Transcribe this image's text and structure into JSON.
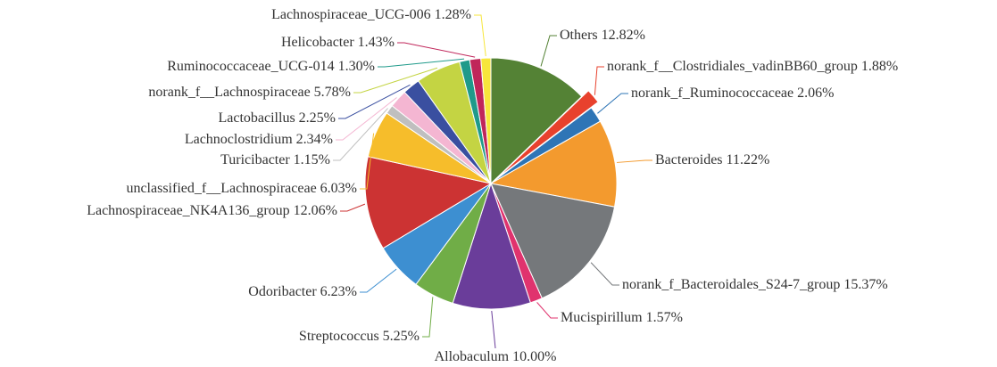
{
  "chart_data": {
    "type": "pie",
    "categories": [
      "Others",
      "norank_f__Clostridiales_vadinBB60_group",
      "norank_f_Ruminococcaceae",
      "Bacteroides",
      "norank_f_Bacteroidales_S24-7_group",
      "Mucispirillum",
      "Allobaculum",
      "Streptococcus",
      "Odoribacter",
      "Lachnospiraceae_NK4A136_group",
      "unclassified_f__Lachnospiraceae",
      "Turicibacter",
      "Lachnoclostridium",
      "Lactobacillus",
      "norank_f__Lachnospiraceae",
      "Ruminococcaceae_UCG-014",
      "Helicobacter",
      "Lachnospiraceae_UCG-006"
    ],
    "values": [
      12.82,
      1.88,
      2.06,
      11.22,
      15.37,
      1.57,
      10.0,
      5.25,
      6.23,
      12.06,
      6.03,
      1.15,
      2.34,
      2.25,
      5.78,
      1.3,
      1.43,
      1.28
    ],
    "value_labels": [
      "12.82%",
      "1.88%",
      "2.06%",
      "11.22%",
      "15.37%",
      "1.57%",
      "10.00%",
      "5.25%",
      "6.23%",
      "12.06%",
      "6.03%",
      "1.15%",
      "2.34%",
      "2.25%",
      "5.78%",
      "1.30%",
      "1.43%",
      "1.28%"
    ],
    "colors": [
      "#548235",
      "#e8412d",
      "#2e75b6",
      "#f39a2e",
      "#75787b",
      "#e0336e",
      "#6a3d9a",
      "#70ad47",
      "#3d8fd1",
      "#cc3333",
      "#f6bd2b",
      "#bfbfbf",
      "#f4b6d2",
      "#3a4fa0",
      "#c4d443",
      "#1f9a8a",
      "#c0265a",
      "#f7e63b"
    ]
  }
}
